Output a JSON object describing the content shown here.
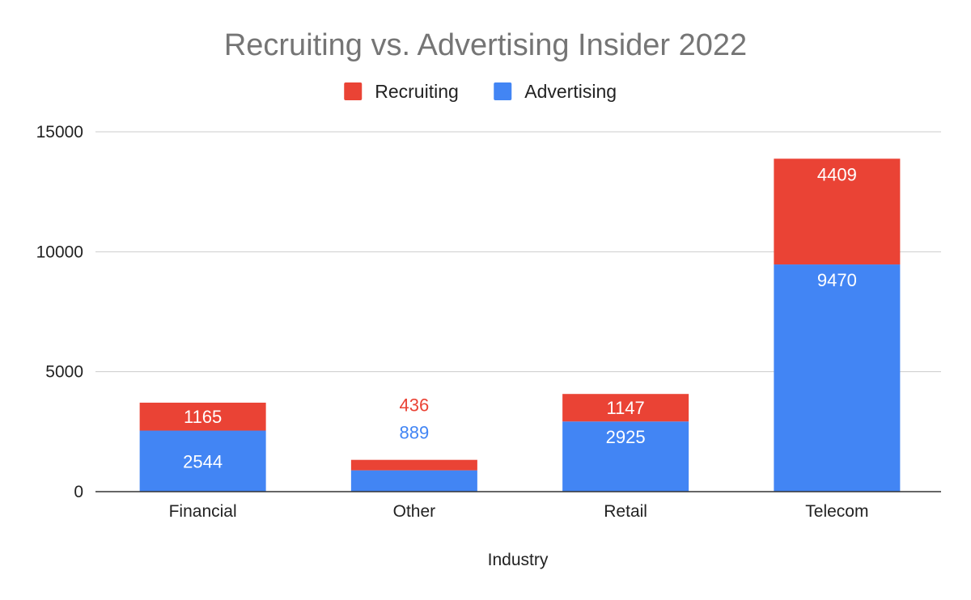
{
  "chart_data": {
    "type": "bar",
    "stacked": true,
    "title": "Recruiting vs. Advertising Insider 2022",
    "xlabel": "Industry",
    "ylabel": "",
    "categories": [
      "Financial",
      "Other",
      "Retail",
      "Telecom"
    ],
    "series": [
      {
        "name": "Advertising",
        "color": "#4285f4",
        "values": [
          2544,
          889,
          2925,
          9470
        ]
      },
      {
        "name": "Recruiting",
        "color": "#ea4335",
        "values": [
          1165,
          436,
          1147,
          4409
        ]
      }
    ],
    "legend_order": [
      "Recruiting",
      "Advertising"
    ],
    "legend_position": "top",
    "ylim": [
      0,
      15000
    ],
    "yticks": [
      "0",
      "5000",
      "10000",
      "15000"
    ],
    "grid": true
  }
}
